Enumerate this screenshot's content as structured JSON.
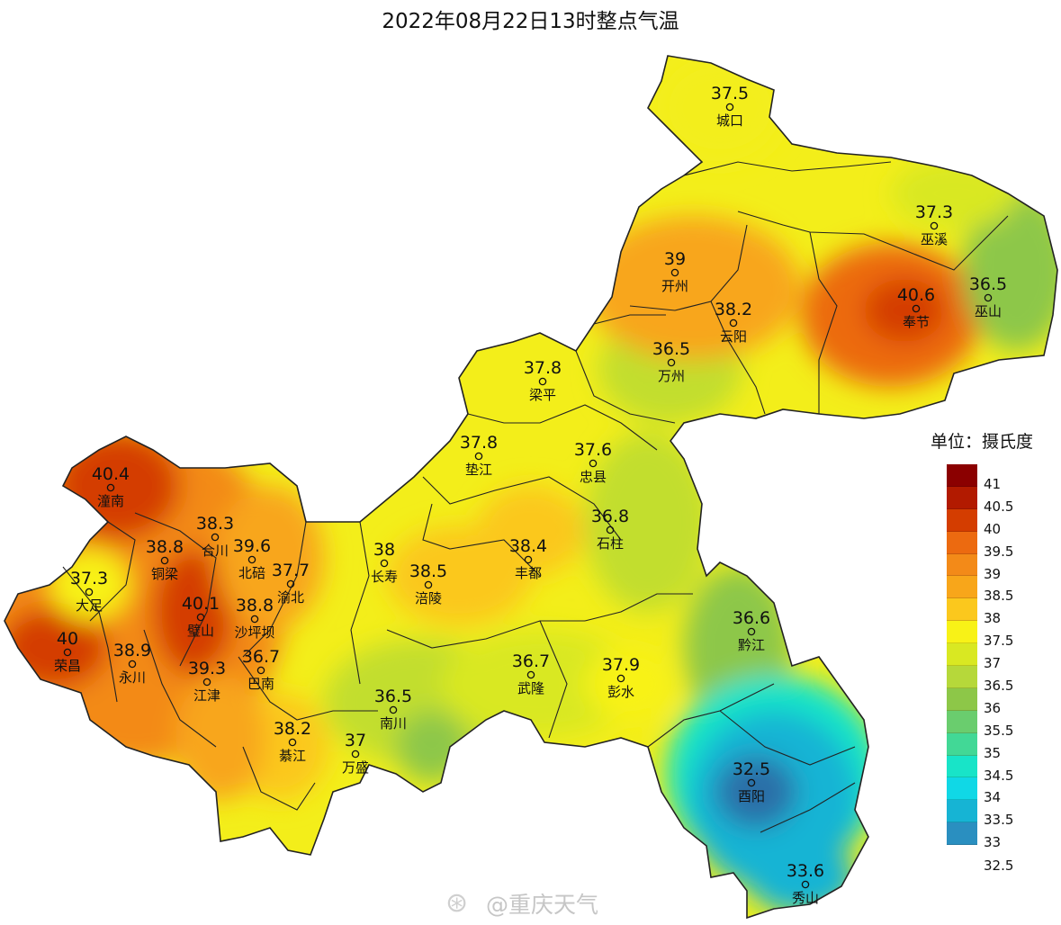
{
  "title": "2022年08月22日13时整点气温",
  "legend": {
    "title": "单位：摄氏度",
    "levels": [
      {
        "label": "41",
        "color": "#8b0000"
      },
      {
        "label": "40.5",
        "color": "#b21a00"
      },
      {
        "label": "40",
        "color": "#d43d00"
      },
      {
        "label": "39.5",
        "color": "#ec6a10"
      },
      {
        "label": "39",
        "color": "#f38a18"
      },
      {
        "label": "38.5",
        "color": "#f8a61a"
      },
      {
        "label": "38",
        "color": "#fbc81d"
      },
      {
        "label": "37.5",
        "color": "#f8f217"
      },
      {
        "label": "37",
        "color": "#d9e822"
      },
      {
        "label": "36.5",
        "color": "#b6d83a"
      },
      {
        "label": "36",
        "color": "#8dc748"
      },
      {
        "label": "35.5",
        "color": "#6acd6e"
      },
      {
        "label": "35",
        "color": "#42d896"
      },
      {
        "label": "34.5",
        "color": "#18e4c8"
      },
      {
        "label": "34",
        "color": "#10d8e6"
      },
      {
        "label": "33.5",
        "color": "#16b4d4"
      },
      {
        "label": "33",
        "color": "#2a8fc0"
      }
    ],
    "bottom_label": "32.5"
  },
  "stations": [
    {
      "name": "城口",
      "value": "37.5"
    },
    {
      "name": "巫溪",
      "value": "37.3"
    },
    {
      "name": "开州",
      "value": "39"
    },
    {
      "name": "巫山",
      "value": "36.5"
    },
    {
      "name": "奉节",
      "value": "40.6"
    },
    {
      "name": "云阳",
      "value": "38.2"
    },
    {
      "name": "万州",
      "value": "36.5"
    },
    {
      "name": "梁平",
      "value": "37.8"
    },
    {
      "name": "垫江",
      "value": "37.8"
    },
    {
      "name": "忠县",
      "value": "37.6"
    },
    {
      "name": "潼南",
      "value": "40.4"
    },
    {
      "name": "合川",
      "value": "38.3"
    },
    {
      "name": "石柱",
      "value": "36.8"
    },
    {
      "name": "铜梁",
      "value": "38.8"
    },
    {
      "name": "北碚",
      "value": "39.6"
    },
    {
      "name": "渝北",
      "value": "37.7"
    },
    {
      "name": "长寿",
      "value": "38"
    },
    {
      "name": "涪陵",
      "value": "38.5"
    },
    {
      "name": "丰都",
      "value": "38.4"
    },
    {
      "name": "大足",
      "value": "37.3"
    },
    {
      "name": "璧山",
      "value": "40.1"
    },
    {
      "name": "沙坪坝",
      "value": "38.8"
    },
    {
      "name": "黔江",
      "value": "36.6"
    },
    {
      "name": "荣昌",
      "value": "40"
    },
    {
      "name": "永川",
      "value": "38.9"
    },
    {
      "name": "江津",
      "value": "39.3"
    },
    {
      "name": "巴南",
      "value": "36.7"
    },
    {
      "name": "武隆",
      "value": "36.7"
    },
    {
      "name": "彭水",
      "value": "37.9"
    },
    {
      "name": "南川",
      "value": "36.5"
    },
    {
      "name": "綦江",
      "value": "38.2"
    },
    {
      "name": "万盛",
      "value": "37"
    },
    {
      "name": "酉阳",
      "value": "32.5"
    },
    {
      "name": "秀山",
      "value": "33.6"
    }
  ],
  "watermark": {
    "text": "@重庆天气",
    "icon": "weibo-logo-icon"
  }
}
